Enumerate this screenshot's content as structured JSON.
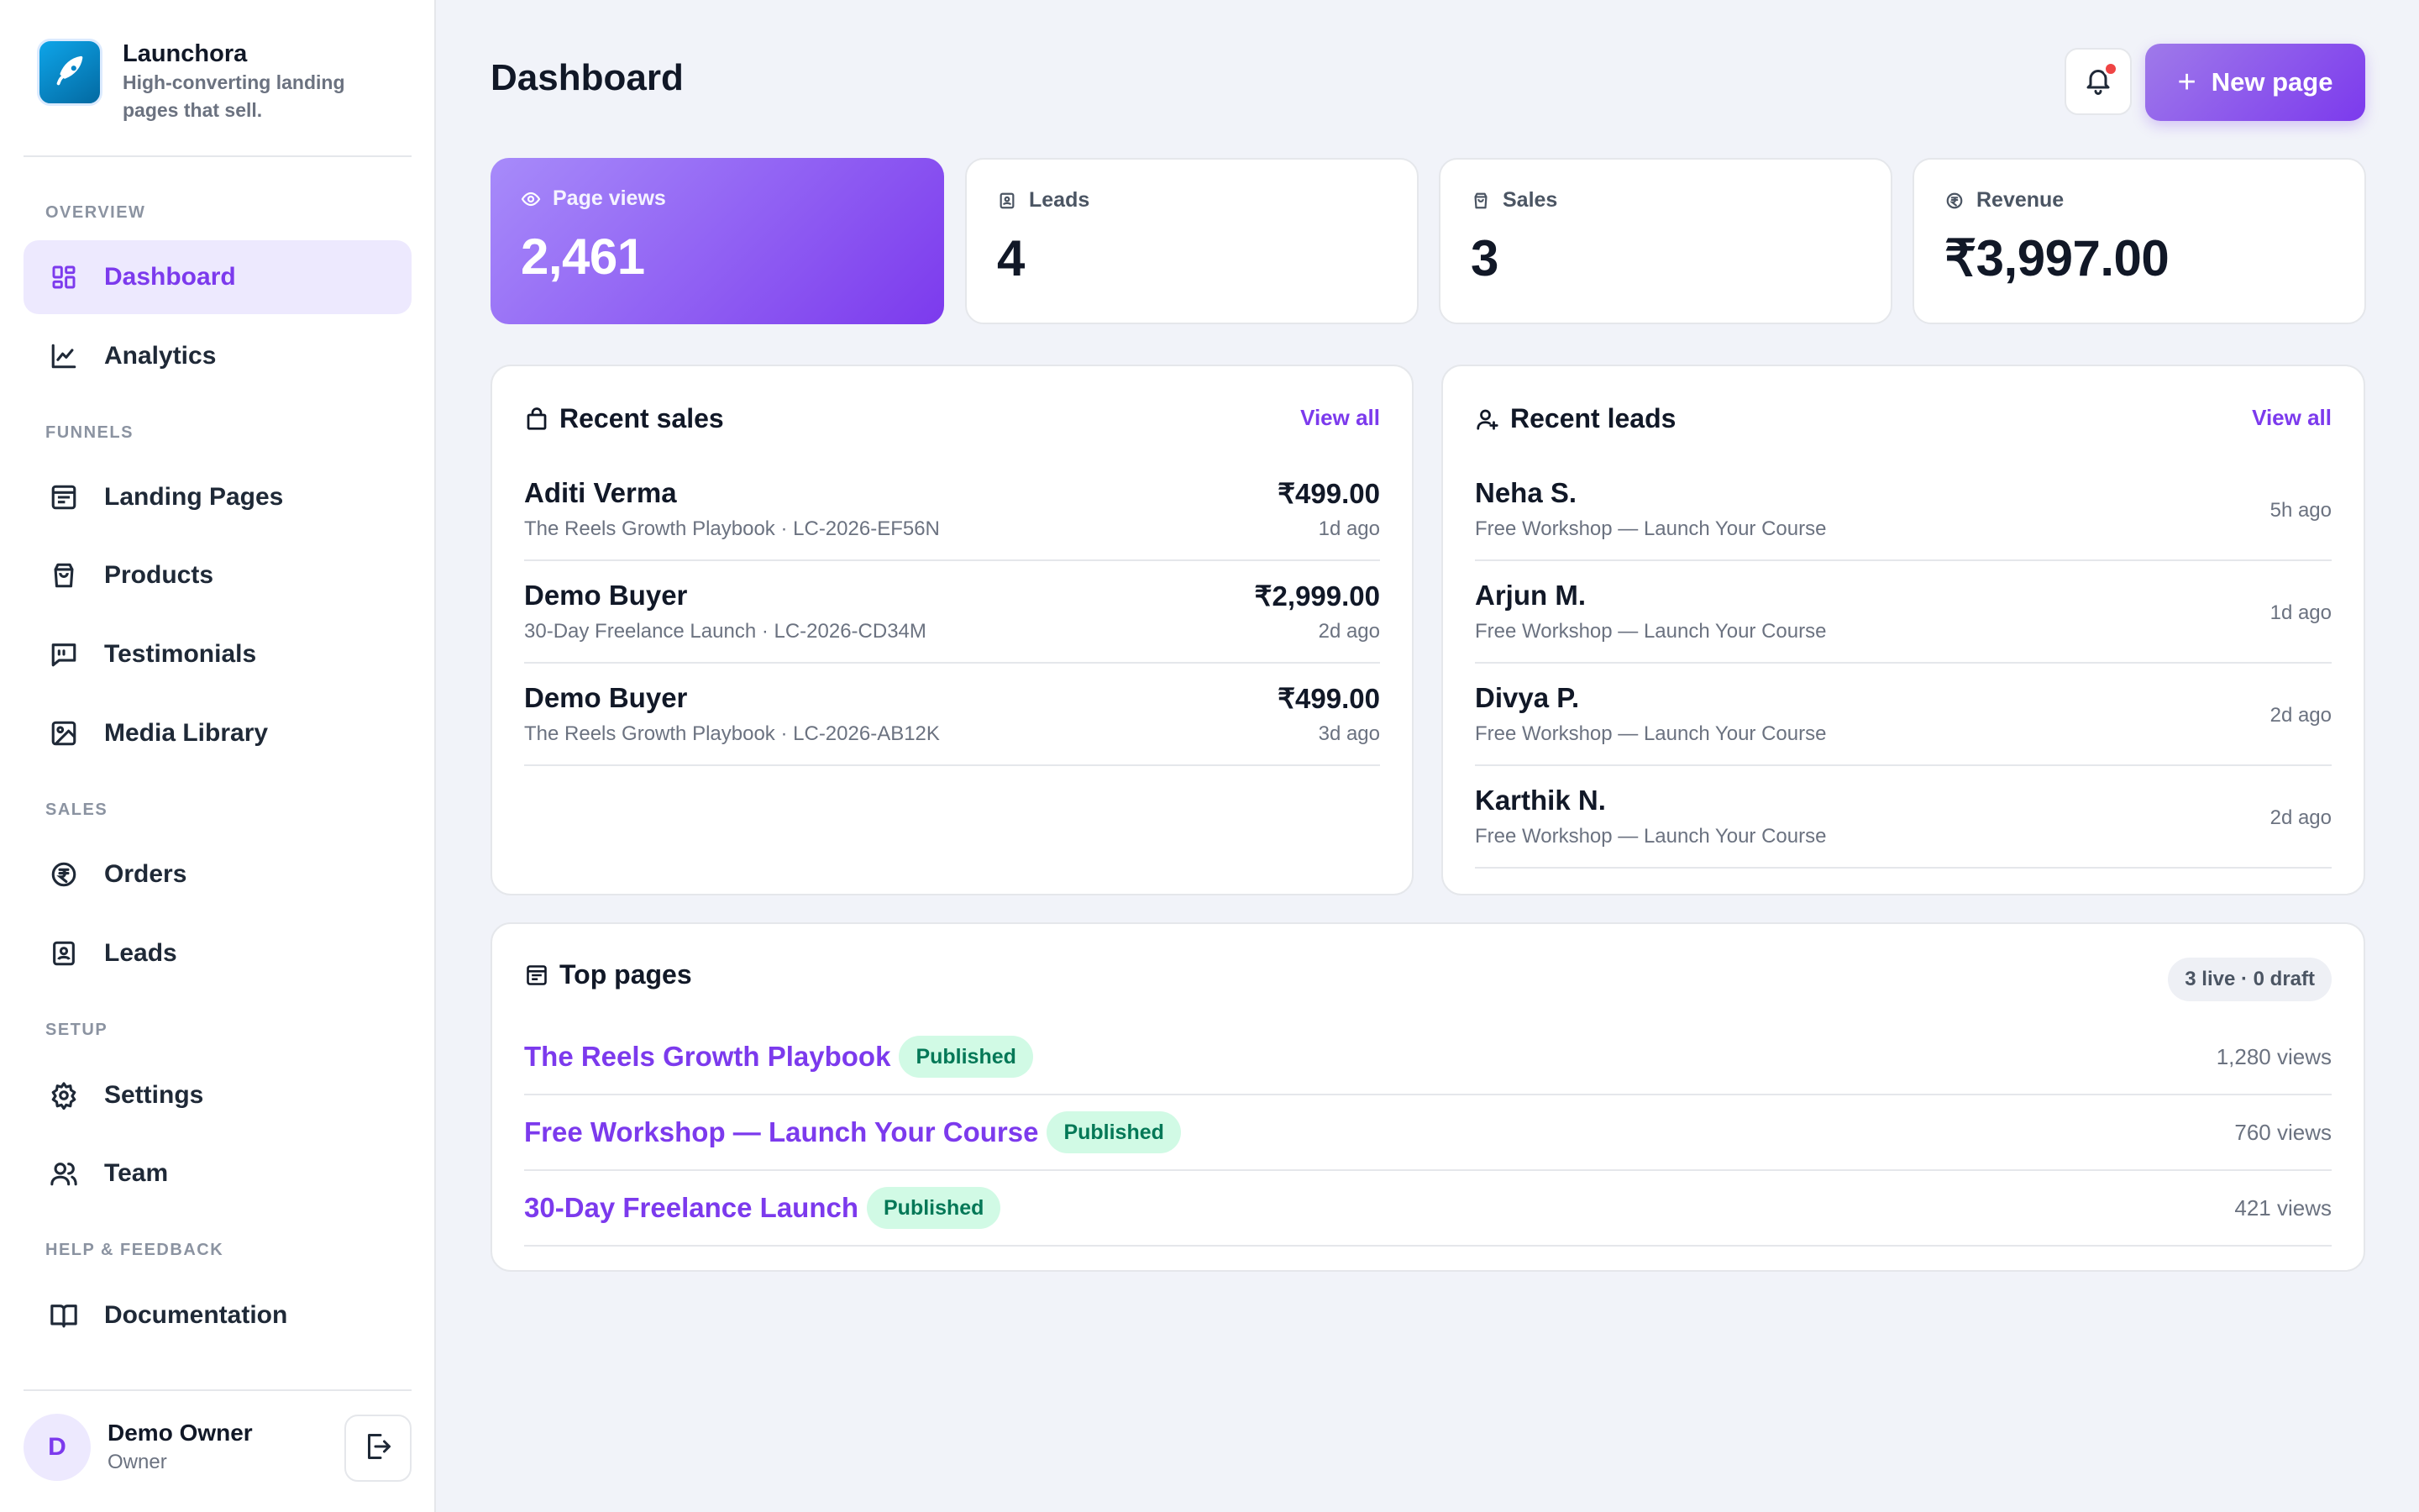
{
  "brand": {
    "name": "Launchora",
    "tagline": "High-converting landing pages that sell."
  },
  "sidebar": {
    "sections": [
      {
        "label": "OVERVIEW"
      },
      {
        "label": "FUNNELS"
      },
      {
        "label": "SALES"
      },
      {
        "label": "SETUP"
      },
      {
        "label": "HELP & FEEDBACK"
      }
    ],
    "items": [
      {
        "label": "Dashboard",
        "icon": "dashboard-icon",
        "active": true
      },
      {
        "label": "Analytics",
        "icon": "chart-line-icon"
      },
      {
        "label": "Landing Pages",
        "icon": "page-layout-icon"
      },
      {
        "label": "Products",
        "icon": "shopping-bag-icon"
      },
      {
        "label": "Testimonials",
        "icon": "quote-message-icon"
      },
      {
        "label": "Media Library",
        "icon": "image-icon"
      },
      {
        "label": "Orders",
        "icon": "rupee-circle-icon"
      },
      {
        "label": "Leads",
        "icon": "contact-book-icon"
      },
      {
        "label": "Settings",
        "icon": "gear-icon"
      },
      {
        "label": "Team",
        "icon": "users-icon"
      },
      {
        "label": "Documentation",
        "icon": "book-icon"
      }
    ]
  },
  "user": {
    "initial": "D",
    "name": "Demo Owner",
    "role": "Owner"
  },
  "header": {
    "title": "Dashboard",
    "new_button": "New page"
  },
  "stats": [
    {
      "label": "Page views",
      "value": "2,461",
      "icon": "eye-icon"
    },
    {
      "label": "Leads",
      "value": "4",
      "icon": "contact-book-icon"
    },
    {
      "label": "Sales",
      "value": "3",
      "icon": "shopping-bag-icon"
    },
    {
      "label": "Revenue",
      "value": "₹3,997.00",
      "icon": "rupee-circle-icon"
    }
  ],
  "recent_sales": {
    "title": "Recent sales",
    "view_all": "View all",
    "rows": [
      {
        "name": "Aditi Verma",
        "detail": "The Reels Growth Playbook · LC-2026-EF56N",
        "amount": "₹499.00",
        "time": "1d ago"
      },
      {
        "name": "Demo Buyer",
        "detail": "30-Day Freelance Launch · LC-2026-CD34M",
        "amount": "₹2,999.00",
        "time": "2d ago"
      },
      {
        "name": "Demo Buyer",
        "detail": "The Reels Growth Playbook · LC-2026-AB12K",
        "amount": "₹499.00",
        "time": "3d ago"
      }
    ]
  },
  "recent_leads": {
    "title": "Recent leads",
    "view_all": "View all",
    "rows": [
      {
        "name": "Neha S.",
        "detail": "Free Workshop — Launch Your Course",
        "time": "5h ago"
      },
      {
        "name": "Arjun M.",
        "detail": "Free Workshop — Launch Your Course",
        "time": "1d ago"
      },
      {
        "name": "Divya P.",
        "detail": "Free Workshop — Launch Your Course",
        "time": "2d ago"
      },
      {
        "name": "Karthik N.",
        "detail": "Free Workshop — Launch Your Course",
        "time": "2d ago"
      }
    ]
  },
  "top_pages": {
    "title": "Top pages",
    "summary": "3 live · 0 draft",
    "rows": [
      {
        "name": "The Reels Growth Playbook",
        "status": "Published",
        "views": "1,280 views"
      },
      {
        "name": "Free Workshop — Launch Your Course",
        "status": "Published",
        "views": "760 views"
      },
      {
        "name": "30-Day Freelance Launch",
        "status": "Published",
        "views": "421 views"
      }
    ]
  },
  "colors": {
    "accent": "#7c3aed",
    "accent_light": "#ede9fe",
    "published_bg": "#d1fae5",
    "published_text": "#047857",
    "notification_dot": "#ef4444",
    "brand_logo": "#0284c7"
  }
}
